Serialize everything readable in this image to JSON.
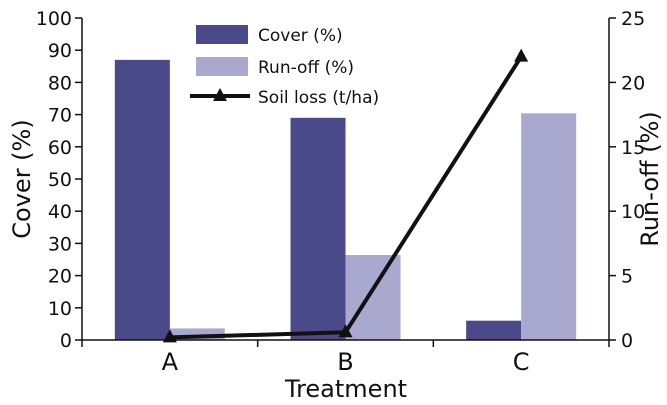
{
  "chart_data": {
    "type": "bar",
    "categories": [
      "A",
      "B",
      "C"
    ],
    "xlabel": "Treatment",
    "ylabel": "Cover (%)",
    "y2label": "Run-off (%)",
    "ylim": [
      0,
      100
    ],
    "y2lim": [
      0,
      25
    ],
    "yticks": [
      0,
      10,
      20,
      30,
      40,
      50,
      60,
      70,
      80,
      90,
      100
    ],
    "y2ticks": [
      0,
      5,
      10,
      15,
      20,
      25
    ],
    "grid": false,
    "legend_position": "top-center",
    "series": [
      {
        "name": "Cover (%)",
        "kind": "bar",
        "axis": "left",
        "color": "#4a4a8a",
        "values": [
          87,
          69,
          6
        ]
      },
      {
        "name": "Run-off (%)",
        "kind": "bar",
        "axis": "right",
        "color": "#a9a9d0",
        "values": [
          0.9,
          6.6,
          17.6
        ]
      },
      {
        "name": "Soil loss (t/ha)",
        "kind": "line",
        "axis": "right",
        "marker": "triangle",
        "color": "#111111",
        "values": [
          0.2,
          0.6,
          22
        ]
      }
    ]
  }
}
